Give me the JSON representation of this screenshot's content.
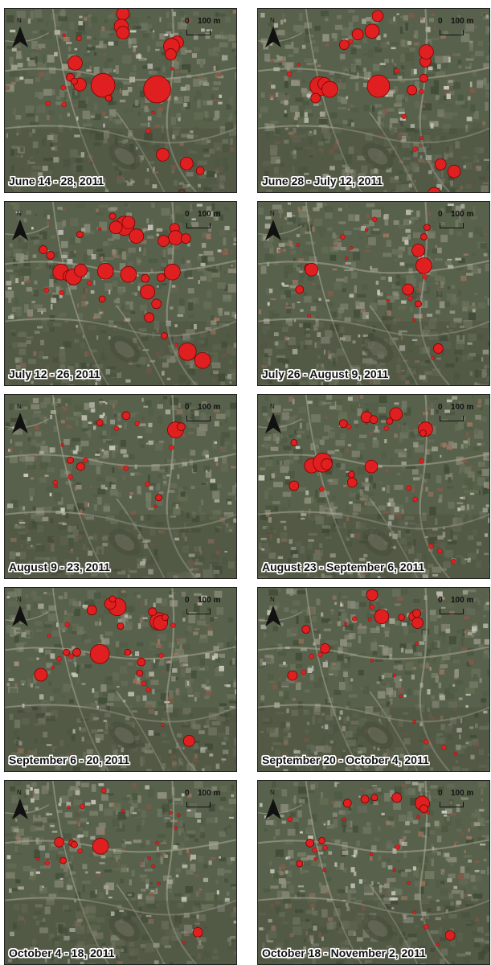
{
  "north_label": "N",
  "scale": {
    "zero": "0",
    "distance": "100 m"
  },
  "colors": {
    "case_circle": "#e02020",
    "circle_outline": "#7a0000",
    "aerial_base": "#5e6652"
  },
  "panels": [
    {
      "label": "June 14 - 28, 2011",
      "cases": [
        [
          148,
          6,
          8
        ],
        [
          146,
          22,
          9
        ],
        [
          148,
          30,
          8
        ],
        [
          74,
          33,
          2
        ],
        [
          93,
          37,
          3
        ],
        [
          88,
          68,
          9
        ],
        [
          82,
          86,
          5
        ],
        [
          94,
          95,
          8
        ],
        [
          87,
          91,
          4
        ],
        [
          73,
          99,
          3
        ],
        [
          123,
          96,
          15
        ],
        [
          191,
          101,
          17
        ],
        [
          54,
          119,
          3
        ],
        [
          74,
          120,
          3
        ],
        [
          130,
          112,
          4
        ],
        [
          216,
          42,
          8
        ],
        [
          209,
          47,
          10
        ],
        [
          208,
          57,
          7
        ],
        [
          210,
          75,
          2
        ],
        [
          186,
          130,
          2
        ],
        [
          180,
          153,
          3
        ],
        [
          198,
          183,
          8
        ],
        [
          228,
          194,
          8
        ],
        [
          245,
          203,
          5
        ],
        [
          222,
          232,
          4
        ]
      ]
    },
    {
      "label": "June 28 - July 12, 2011",
      "cases": [
        [
          150,
          9,
          7
        ],
        [
          143,
          28,
          9
        ],
        [
          125,
          32,
          7
        ],
        [
          108,
          45,
          6
        ],
        [
          51,
          70,
          2
        ],
        [
          39,
          82,
          3
        ],
        [
          77,
          97,
          12
        ],
        [
          83,
          94,
          8
        ],
        [
          90,
          101,
          10
        ],
        [
          72,
          112,
          6
        ],
        [
          151,
          97,
          14
        ],
        [
          193,
          102,
          6
        ],
        [
          210,
          66,
          7
        ],
        [
          211,
          54,
          9
        ],
        [
          208,
          87,
          5
        ],
        [
          205,
          104,
          3
        ],
        [
          183,
          135,
          3
        ],
        [
          197,
          176,
          3
        ],
        [
          205,
          162,
          2
        ],
        [
          229,
          195,
          7
        ],
        [
          246,
          204,
          8
        ],
        [
          221,
          232,
          8
        ],
        [
          116,
          41,
          3
        ],
        [
          174,
          78,
          3
        ]
      ]
    },
    {
      "label": "July 12 - 26, 2011",
      "cases": [
        [
          150,
          30,
          12
        ],
        [
          139,
          32,
          8
        ],
        [
          155,
          26,
          8
        ],
        [
          165,
          43,
          9
        ],
        [
          135,
          18,
          4
        ],
        [
          119,
          34,
          2
        ],
        [
          213,
          33,
          6
        ],
        [
          214,
          45,
          9
        ],
        [
          199,
          49,
          7
        ],
        [
          227,
          46,
          6
        ],
        [
          94,
          41,
          4
        ],
        [
          48,
          60,
          5
        ],
        [
          57,
          67,
          5
        ],
        [
          70,
          88,
          10
        ],
        [
          80,
          93,
          7
        ],
        [
          86,
          94,
          10
        ],
        [
          95,
          86,
          8
        ],
        [
          126,
          87,
          10
        ],
        [
          155,
          91,
          10
        ],
        [
          196,
          95,
          5
        ],
        [
          210,
          88,
          10
        ],
        [
          176,
          96,
          5
        ],
        [
          179,
          113,
          9
        ],
        [
          190,
          128,
          6
        ],
        [
          181,
          145,
          6
        ],
        [
          200,
          168,
          4
        ],
        [
          122,
          122,
          4
        ],
        [
          106,
          102,
          3
        ],
        [
          52,
          111,
          3
        ],
        [
          71,
          114,
          3
        ],
        [
          229,
          188,
          11
        ],
        [
          248,
          199,
          10
        ],
        [
          215,
          180,
          2
        ]
      ]
    },
    {
      "label": "July 26 - August 9, 2011",
      "cases": [
        [
          146,
          22,
          3
        ],
        [
          136,
          35,
          2
        ],
        [
          106,
          44,
          3
        ],
        [
          117,
          58,
          2
        ],
        [
          50,
          54,
          2
        ],
        [
          212,
          32,
          4
        ],
        [
          208,
          44,
          4
        ],
        [
          201,
          61,
          8
        ],
        [
          208,
          80,
          10
        ],
        [
          209,
          94,
          3
        ],
        [
          63,
          83,
          5
        ],
        [
          67,
          85,
          8
        ],
        [
          52,
          110,
          5
        ],
        [
          188,
          110,
          7
        ],
        [
          191,
          121,
          3
        ],
        [
          201,
          128,
          4
        ],
        [
          226,
          184,
          6
        ],
        [
          219,
          196,
          2
        ],
        [
          163,
          124,
          2
        ],
        [
          64,
          143,
          2
        ],
        [
          111,
          71,
          2
        ],
        [
          196,
          148,
          2
        ]
      ]
    },
    {
      "label": "August 9 - 23, 2011",
      "cases": [
        [
          152,
          26,
          5
        ],
        [
          119,
          35,
          4
        ],
        [
          140,
          42,
          3
        ],
        [
          166,
          36,
          3
        ],
        [
          214,
          44,
          10
        ],
        [
          221,
          40,
          5
        ],
        [
          72,
          63,
          2
        ],
        [
          82,
          82,
          4
        ],
        [
          95,
          90,
          5
        ],
        [
          101,
          82,
          3
        ],
        [
          82,
          103,
          3
        ],
        [
          63,
          110,
          3
        ],
        [
          152,
          92,
          3
        ],
        [
          179,
          112,
          3
        ],
        [
          193,
          129,
          4
        ],
        [
          189,
          140,
          2
        ],
        [
          209,
          66,
          3
        ],
        [
          64,
          115,
          2
        ]
      ]
    },
    {
      "label": "August 23 - September 6, 2011",
      "cases": [
        [
          107,
          36,
          5
        ],
        [
          136,
          28,
          7
        ],
        [
          145,
          31,
          5
        ],
        [
          173,
          24,
          8
        ],
        [
          165,
          33,
          4
        ],
        [
          161,
          42,
          3
        ],
        [
          114,
          40,
          3
        ],
        [
          45,
          60,
          4
        ],
        [
          67,
          89,
          9
        ],
        [
          81,
          85,
          12
        ],
        [
          86,
          87,
          7
        ],
        [
          142,
          90,
          8
        ],
        [
          117,
          100,
          4
        ],
        [
          45,
          114,
          6
        ],
        [
          118,
          110,
          6
        ],
        [
          80,
          118,
          3
        ],
        [
          210,
          43,
          9
        ],
        [
          207,
          48,
          4
        ],
        [
          205,
          83,
          3
        ],
        [
          189,
          117,
          3
        ],
        [
          197,
          131,
          3
        ],
        [
          217,
          190,
          3
        ],
        [
          228,
          196,
          3
        ],
        [
          245,
          209,
          3
        ]
      ]
    },
    {
      "label": "September 6 - 20, 2011",
      "cases": [
        [
          141,
          24,
          11
        ],
        [
          132,
          20,
          7
        ],
        [
          135,
          14,
          4
        ],
        [
          109,
          28,
          6
        ],
        [
          78,
          46,
          3
        ],
        [
          55,
          60,
          2
        ],
        [
          145,
          48,
          4
        ],
        [
          193,
          42,
          11
        ],
        [
          195,
          44,
          9
        ],
        [
          201,
          37,
          4
        ],
        [
          211,
          47,
          3
        ],
        [
          185,
          30,
          5
        ],
        [
          90,
          81,
          5
        ],
        [
          77,
          81,
          4
        ],
        [
          68,
          89,
          3
        ],
        [
          83,
          86,
          3
        ],
        [
          119,
          83,
          12
        ],
        [
          171,
          93,
          5
        ],
        [
          154,
          81,
          4
        ],
        [
          196,
          85,
          3
        ],
        [
          45,
          109,
          8
        ],
        [
          169,
          107,
          4
        ],
        [
          174,
          120,
          3
        ],
        [
          180,
          128,
          3
        ],
        [
          198,
          172,
          2
        ],
        [
          231,
          192,
          7
        ],
        [
          60,
          100,
          2
        ]
      ]
    },
    {
      "label": "September 20 - October 4, 2011",
      "cases": [
        [
          143,
          9,
          7
        ],
        [
          143,
          24,
          3
        ],
        [
          155,
          36,
          9
        ],
        [
          180,
          37,
          4
        ],
        [
          195,
          36,
          6
        ],
        [
          200,
          44,
          7
        ],
        [
          199,
          32,
          5
        ],
        [
          140,
          40,
          2
        ],
        [
          121,
          39,
          3
        ],
        [
          60,
          52,
          5
        ],
        [
          110,
          45,
          2
        ],
        [
          84,
          76,
          6
        ],
        [
          78,
          84,
          3
        ],
        [
          67,
          86,
          3
        ],
        [
          43,
          110,
          6
        ],
        [
          57,
          106,
          3
        ],
        [
          143,
          91,
          2
        ],
        [
          199,
          70,
          2
        ],
        [
          171,
          110,
          2
        ],
        [
          179,
          136,
          2
        ],
        [
          196,
          168,
          2
        ],
        [
          211,
          193,
          3
        ],
        [
          233,
          200,
          3
        ],
        [
          248,
          208,
          2
        ]
      ]
    },
    {
      "label": "October 4 - 18, 2011",
      "cases": [
        [
          124,
          12,
          3
        ],
        [
          97,
          32,
          3
        ],
        [
          80,
          33,
          2
        ],
        [
          68,
          77,
          6
        ],
        [
          84,
          78,
          4
        ],
        [
          87,
          80,
          4
        ],
        [
          120,
          82,
          10
        ],
        [
          94,
          88,
          3
        ],
        [
          73,
          100,
          4
        ],
        [
          53,
          103,
          3
        ],
        [
          41,
          98,
          2
        ],
        [
          148,
          38,
          2
        ],
        [
          191,
          78,
          2
        ],
        [
          181,
          97,
          2
        ],
        [
          186,
          107,
          2
        ],
        [
          193,
          129,
          2
        ],
        [
          218,
          43,
          2
        ],
        [
          214,
          59,
          2
        ],
        [
          208,
          40,
          2
        ],
        [
          242,
          190,
          6
        ],
        [
          225,
          203,
          2
        ]
      ]
    },
    {
      "label": "October 18 - November 2, 2011",
      "cases": [
        [
          112,
          28,
          5
        ],
        [
          134,
          23,
          5
        ],
        [
          146,
          21,
          4
        ],
        [
          174,
          21,
          6
        ],
        [
          206,
          28,
          9
        ],
        [
          208,
          35,
          5
        ],
        [
          201,
          45,
          2
        ],
        [
          108,
          48,
          2
        ],
        [
          40,
          48,
          3
        ],
        [
          65,
          78,
          5
        ],
        [
          80,
          75,
          4
        ],
        [
          71,
          87,
          3
        ],
        [
          84,
          84,
          3
        ],
        [
          52,
          104,
          4
        ],
        [
          72,
          98,
          2
        ],
        [
          83,
          112,
          2
        ],
        [
          142,
          92,
          2
        ],
        [
          175,
          83,
          3
        ],
        [
          171,
          112,
          2
        ],
        [
          189,
          128,
          2
        ],
        [
          196,
          165,
          2
        ],
        [
          211,
          183,
          3
        ],
        [
          241,
          194,
          6
        ],
        [
          225,
          205,
          2
        ],
        [
          213,
          40,
          2
        ]
      ]
    }
  ]
}
